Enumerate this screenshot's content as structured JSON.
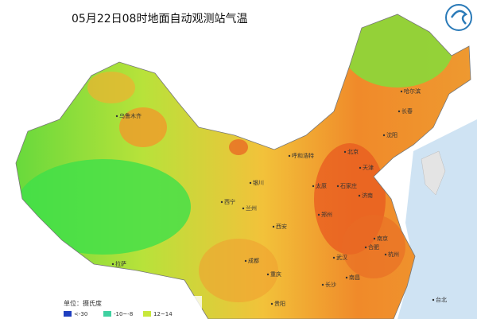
{
  "title": "05月22日08时地面自动观测站气温",
  "cities": [
    "乌鲁木齐",
    "哈尔滨",
    "长春",
    "沈阳",
    "北京",
    "天津",
    "呼和浩特",
    "石家庄",
    "太原",
    "济南",
    "银川",
    "西宁",
    "兰州",
    "郑州",
    "西安",
    "合肥",
    "南京",
    "杭州",
    "成都",
    "武汉",
    "重庆",
    "南昌",
    "长沙",
    "拉萨",
    "贵阳",
    "台北"
  ],
  "legend": {
    "unit": "单位：摄氏度",
    "items": [
      {
        "label": "<-30",
        "color": "#1f3fbf"
      },
      {
        "label": "-10~-8",
        "color": "#3fd0a0"
      },
      {
        "label": "12~14",
        "color": "#c8e83a"
      }
    ]
  }
}
